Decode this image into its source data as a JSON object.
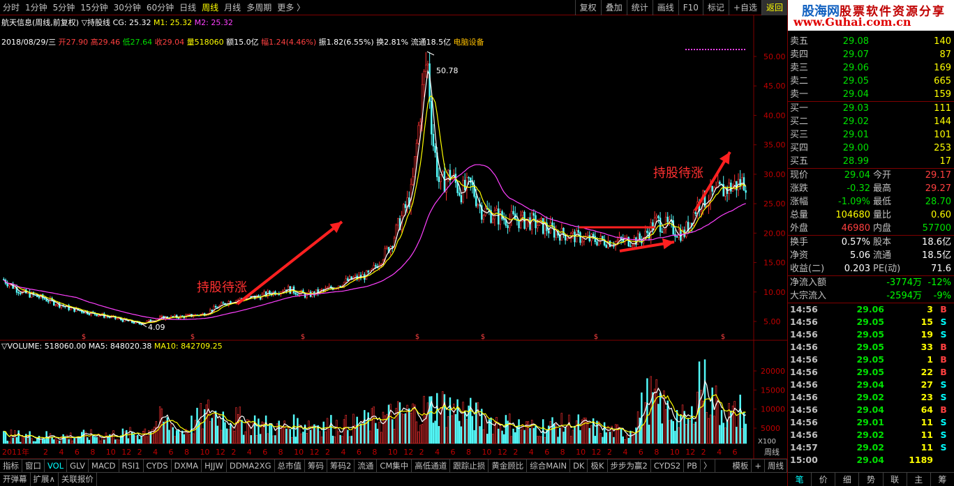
{
  "timeframes": [
    "分时",
    "1分钟",
    "5分钟",
    "15分钟",
    "30分钟",
    "60分钟",
    "日线",
    "周线",
    "月线",
    "多周期",
    "更多 〉"
  ],
  "active_timeframe": 7,
  "tools": [
    "复权",
    "叠加",
    "统计",
    "画线",
    "F10",
    "标记",
    "+自选",
    "返回"
  ],
  "title": {
    "stock": "航天信息(周线,前复权)",
    "indicator": "▽持股线",
    "cg": "CG: 25.32",
    "m1": "M1: 25.32",
    "m2": "M2: 25.32"
  },
  "ohlc": {
    "date": "2018/08/29/三",
    "open": "开27.90",
    "high": "高29.46",
    "low": "低27.64",
    "close": "收29.04",
    "vol": "量518060",
    "amount": "额15.0亿",
    "change": "幅1.24(4.46%)",
    "amplitude": "振1.82(6.55%)",
    "turnover": "换2.81%",
    "float": "流通18.5亿",
    "sector": "电脑设备"
  },
  "volinfo": {
    "volume": "▽VOLUME: 518060.00",
    "ma5": "MA5: 848020.38",
    "ma10": "MA10: 842709.25"
  },
  "annotations": {
    "hold1": "持股待涨",
    "hold2": "持股待涨",
    "high": "50.78",
    "low": "4.09"
  },
  "price_axis": [
    "50.00",
    "45.00",
    "40.00",
    "35.00",
    "30.00",
    "25.00",
    "20.00",
    "15.00",
    "10.00",
    "5.00"
  ],
  "vol_axis": [
    "20000",
    "15000",
    "10000",
    "5000"
  ],
  "vol_unit": "X100",
  "x_year_label": "2011年",
  "x_months": [
    "2",
    "4",
    "6",
    "8",
    "10",
    "12",
    "2",
    "4",
    "6",
    "8",
    "10",
    "12",
    "2",
    "4",
    "6",
    "8",
    "10",
    "12",
    "2",
    "4",
    "6",
    "8",
    "10",
    "12",
    "2",
    "4",
    "6",
    "8",
    "10",
    "12",
    "2",
    "4",
    "6",
    "8",
    "10",
    "12",
    "2",
    "4",
    "6",
    "8",
    "10",
    "12",
    "2",
    "4",
    "6"
  ],
  "right_corner_label": "周线",
  "bottom_tabs": [
    "指标",
    "窗口",
    "VOL",
    "GLV",
    "MACD",
    "RSI1",
    "CYDS",
    "DXMA",
    "HJJW",
    "DDMA2XG",
    "总市值",
    "筹码",
    "筹码2",
    "流通",
    "CM集中",
    "高低通道",
    "跟踪止损",
    "黄金顾比",
    "综合MAIN",
    "DK",
    "极K",
    "步步为赢2",
    "CYDS2",
    "PB",
    "〉"
  ],
  "bottom_tabs_right": [
    "模板",
    "+",
    "周线"
  ],
  "bottom_tabs2": [
    "开弹幕",
    "扩展∧",
    "关联报价"
  ],
  "logo": {
    "top": "股海网",
    "top2": "股票软件资源分享",
    "url": "www.Guhai.com.cn"
  },
  "asks": [
    {
      "label": "卖五",
      "price": "29.08",
      "vol": "140"
    },
    {
      "label": "卖四",
      "price": "29.07",
      "vol": "87"
    },
    {
      "label": "卖三",
      "price": "29.06",
      "vol": "169"
    },
    {
      "label": "卖二",
      "price": "29.05",
      "vol": "665"
    },
    {
      "label": "卖一",
      "price": "29.04",
      "vol": "159"
    }
  ],
  "bids": [
    {
      "label": "买一",
      "price": "29.03",
      "vol": "111"
    },
    {
      "label": "买二",
      "price": "29.02",
      "vol": "144"
    },
    {
      "label": "买三",
      "price": "29.01",
      "vol": "101"
    },
    {
      "label": "买四",
      "price": "29.00",
      "vol": "253"
    },
    {
      "label": "买五",
      "price": "28.99",
      "vol": "17"
    }
  ],
  "quote": [
    {
      "k": "现价",
      "v": "29.04",
      "vc": "green",
      "k2": "今开",
      "v2": "29.17",
      "v2c": "red"
    },
    {
      "k": "涨跌",
      "v": "-0.32",
      "vc": "green",
      "k2": "最高",
      "v2": "29.27",
      "v2c": "red"
    },
    {
      "k": "涨幅",
      "v": "-1.09%",
      "vc": "green",
      "k2": "最低",
      "v2": "28.70",
      "v2c": "green"
    },
    {
      "k": "总量",
      "v": "104680",
      "vc": "yellow",
      "k2": "量比",
      "v2": "0.60",
      "v2c": "yellow"
    },
    {
      "k": "外盘",
      "v": "46980",
      "vc": "red",
      "k2": "内盘",
      "v2": "57700",
      "v2c": "green"
    }
  ],
  "quote2": [
    {
      "k": "换手",
      "v": "0.57%",
      "vc": "white",
      "k2": "股本",
      "v2": "18.6亿",
      "v2c": "white"
    },
    {
      "k": "净资",
      "v": "5.06",
      "vc": "white",
      "k2": "流通",
      "v2": "18.5亿",
      "v2c": "white"
    },
    {
      "k": "收益(二)",
      "v": "0.203",
      "vc": "white",
      "k2": "PE(动)",
      "v2": "71.6",
      "v2c": "white"
    }
  ],
  "flows": [
    {
      "k": "净流入额",
      "v": "-3774万",
      "p": "-12%"
    },
    {
      "k": "大宗流入",
      "v": "-2594万",
      "p": "-9%"
    }
  ],
  "ticks": [
    {
      "t": "14:56",
      "p": "29.06",
      "q": "3",
      "d": "B"
    },
    {
      "t": "14:56",
      "p": "29.05",
      "q": "15",
      "d": "S"
    },
    {
      "t": "14:56",
      "p": "29.05",
      "q": "19",
      "d": "S"
    },
    {
      "t": "14:56",
      "p": "29.05",
      "q": "33",
      "d": "B"
    },
    {
      "t": "14:56",
      "p": "29.05",
      "q": "1",
      "d": "B"
    },
    {
      "t": "14:56",
      "p": "29.05",
      "q": "22",
      "d": "B"
    },
    {
      "t": "14:56",
      "p": "29.04",
      "q": "27",
      "d": "S"
    },
    {
      "t": "14:56",
      "p": "29.02",
      "q": "23",
      "d": "S"
    },
    {
      "t": "14:56",
      "p": "29.04",
      "q": "64",
      "d": "B"
    },
    {
      "t": "14:56",
      "p": "29.01",
      "q": "11",
      "d": "S"
    },
    {
      "t": "14:56",
      "p": "29.02",
      "q": "11",
      "d": "S"
    },
    {
      "t": "14:57",
      "p": "29.02",
      "q": "11",
      "d": "S"
    },
    {
      "t": "15:00",
      "p": "29.04",
      "q": "1189",
      "d": ""
    }
  ],
  "right_tabs": [
    "笔",
    "价",
    "细",
    "势",
    "联",
    "主",
    "筹"
  ]
}
